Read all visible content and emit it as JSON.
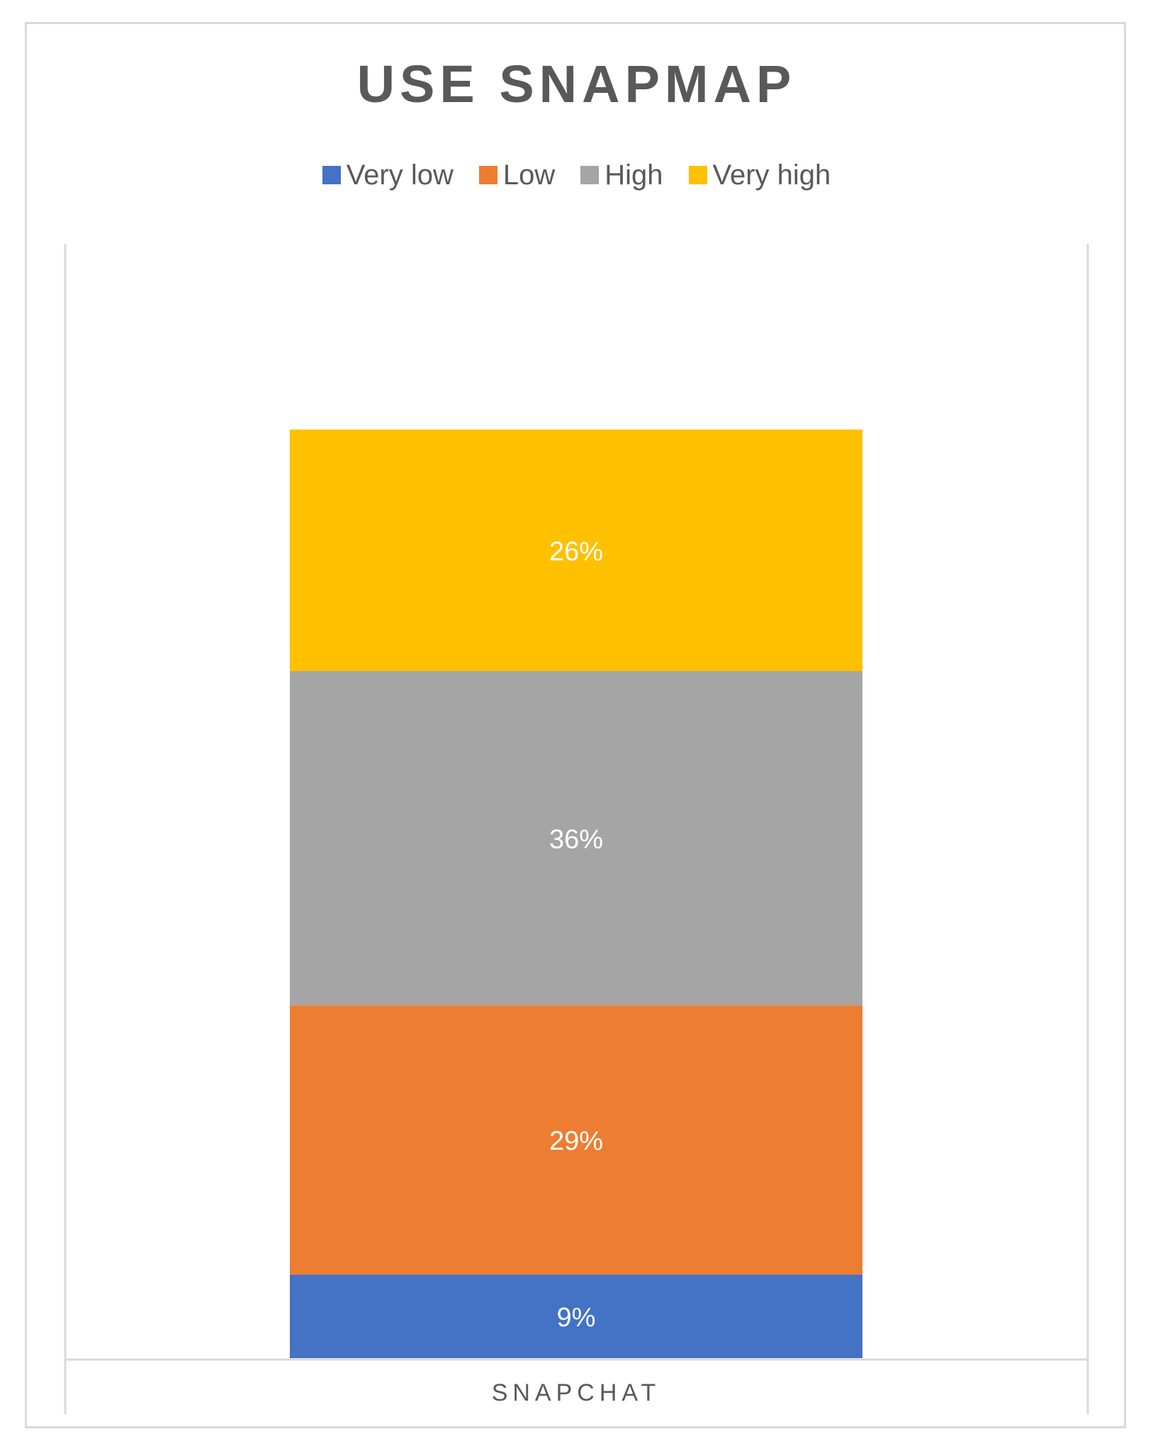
{
  "chart_data": {
    "type": "bar",
    "stacked": "percent",
    "title": "USE SNAPMAP",
    "categories": [
      "SNAPCHAT"
    ],
    "series": [
      {
        "name": "Very low",
        "values": [
          9
        ],
        "color": "#4472c4",
        "label": "9%"
      },
      {
        "name": "Low",
        "values": [
          29
        ],
        "color": "#ed7d31",
        "label": "29%"
      },
      {
        "name": "High",
        "values": [
          36
        ],
        "color": "#a5a5a5",
        "label": "36%"
      },
      {
        "name": "Very high",
        "values": [
          26
        ],
        "color": "#ffc000",
        "label": "26%"
      }
    ],
    "xlabel": "",
    "ylabel": "",
    "ylim": [
      0,
      100
    ],
    "legend_position": "top",
    "grid": false
  },
  "colors": {
    "frame_border": "#d9d9d9",
    "axis_line": "#d9d9d9",
    "title_text": "#595959",
    "data_label_text": "#ffffff"
  }
}
